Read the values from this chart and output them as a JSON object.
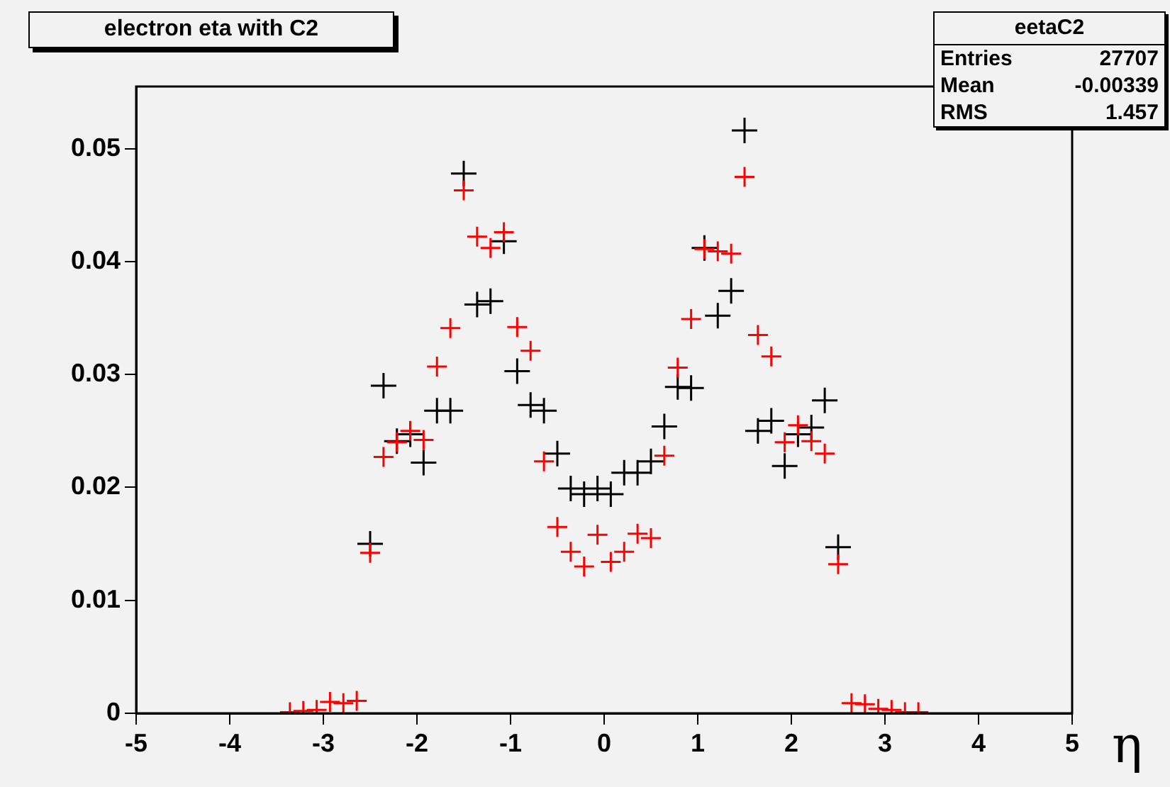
{
  "chart_data": {
    "type": "scatter",
    "title": "electron eta with C2",
    "xlabel": "η",
    "annotations": [
      "eetaC2",
      "Entries 27707",
      "Mean -0.00339",
      "RMS 1.457"
    ],
    "x": [
      -3.357,
      -3.214,
      -3.071,
      -2.929,
      -2.786,
      -2.643,
      -2.5,
      -2.357,
      -2.214,
      -2.071,
      -1.929,
      -1.786,
      -1.643,
      -1.5,
      -1.357,
      -1.214,
      -1.071,
      -0.929,
      -0.786,
      -0.643,
      -0.5,
      -0.357,
      -0.214,
      -0.071,
      0.071,
      0.214,
      0.357,
      0.5,
      0.643,
      0.786,
      0.929,
      1.071,
      1.214,
      1.357,
      1.5,
      1.643,
      1.786,
      1.929,
      2.071,
      2.214,
      2.357,
      2.5,
      2.643,
      2.786,
      2.929,
      3.071,
      3.214,
      3.357
    ],
    "series": [
      {
        "color": "#ff0000",
        "values": [
          0.0001,
          0.0002,
          0.0003,
          0.001,
          0.0009,
          0.0011,
          0.0142,
          0.0227,
          0.024,
          0.025,
          0.0242,
          0.0307,
          0.0341,
          0.0463,
          0.0422,
          0.0412,
          0.0426,
          0.0342,
          0.0321,
          0.0223,
          0.0165,
          0.0143,
          0.013,
          0.0158,
          0.0134,
          0.0143,
          0.0159,
          0.0155,
          0.0228,
          0.0306,
          0.0349,
          0.0411,
          0.0409,
          0.0407,
          0.0475,
          0.0335,
          0.0316,
          0.024,
          0.0255,
          0.0241,
          0.023,
          0.0132,
          0.0009,
          0.0008,
          0.0004,
          0.0003,
          0.0001,
          0.0001
        ]
      },
      {
        "color": "#000000",
        "values": [
          null,
          null,
          null,
          null,
          null,
          null,
          0.015,
          0.029,
          0.0241,
          0.0247,
          0.0222,
          0.0268,
          0.0268,
          0.0478,
          0.0362,
          0.0365,
          0.0418,
          0.0303,
          0.0273,
          0.0268,
          0.023,
          0.0199,
          0.0194,
          0.0199,
          0.0194,
          0.0213,
          0.0213,
          0.0223,
          0.0254,
          0.0289,
          0.0288,
          0.0412,
          0.0352,
          0.0374,
          0.0516,
          0.025,
          0.0259,
          0.0219,
          0.0247,
          0.0253,
          0.0277,
          0.0147,
          null,
          null,
          null,
          null,
          null,
          null
        ]
      }
    ],
    "xlim": [
      -5,
      5
    ],
    "xticks": [
      -5,
      -4,
      -3,
      -2,
      -1,
      0,
      1,
      2,
      3,
      4,
      5
    ],
    "ylim": [
      0,
      0.0555
    ],
    "yticks": [
      0,
      0.01,
      0.02,
      0.03,
      0.04,
      0.05
    ],
    "marker": "cross",
    "grid": false,
    "legend": false
  }
}
